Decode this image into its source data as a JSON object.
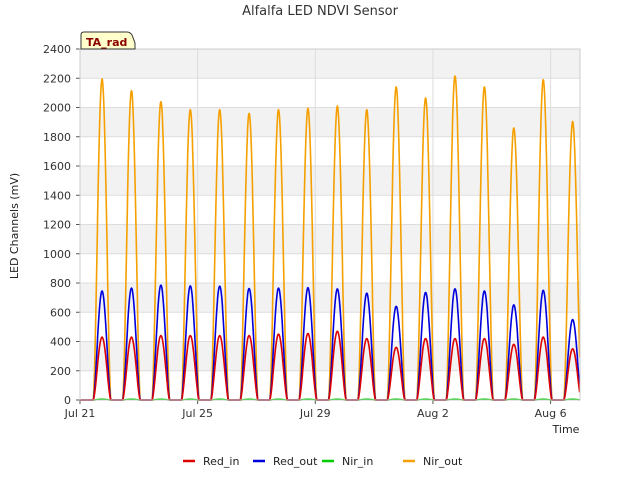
{
  "chart_data": {
    "type": "line",
    "title": "Alfalfa LED NDVI Sensor",
    "xlabel": "Time",
    "ylabel": "LED Channels (mV)",
    "badge": "TA_rad",
    "ylim": [
      0,
      2400
    ],
    "yticks": [
      0,
      200,
      400,
      600,
      800,
      1000,
      1200,
      1400,
      1600,
      1800,
      2000,
      2200,
      2400
    ],
    "xlim": [
      0,
      17.0
    ],
    "xticks": [
      {
        "day": 0,
        "label": "Jul 21"
      },
      {
        "day": 4,
        "label": "Jul 25"
      },
      {
        "day": 8,
        "label": "Jul 29"
      },
      {
        "day": 12,
        "label": "Aug 2"
      },
      {
        "day": 16,
        "label": "Aug 6"
      }
    ],
    "grid": true,
    "legend_position": "bottom",
    "day_center_offset": 0.75,
    "day_count": 17,
    "series": [
      {
        "name": "Red_in",
        "color": "#dd0000",
        "daily_peaks": [
          430,
          430,
          440,
          440,
          440,
          440,
          450,
          455,
          470,
          420,
          360,
          420,
          420,
          420,
          380,
          430,
          350
        ]
      },
      {
        "name": "Red_out",
        "color": "#0000dd",
        "daily_peaks": [
          745,
          765,
          785,
          780,
          778,
          762,
          765,
          768,
          760,
          730,
          640,
          735,
          760,
          745,
          650,
          750,
          550
        ]
      },
      {
        "name": "Nir_in",
        "color": "#00cc00",
        "daily_peaks": [
          5,
          5,
          5,
          5,
          5,
          5,
          5,
          5,
          5,
          5,
          5,
          5,
          5,
          5,
          5,
          5,
          5
        ]
      },
      {
        "name": "Nir_out",
        "color": "#f5a000",
        "daily_peaks": [
          2195,
          2115,
          2040,
          1985,
          1985,
          1960,
          1985,
          1995,
          2010,
          1985,
          2140,
          2065,
          2215,
          2140,
          1860,
          2190,
          1905
        ]
      }
    ]
  }
}
